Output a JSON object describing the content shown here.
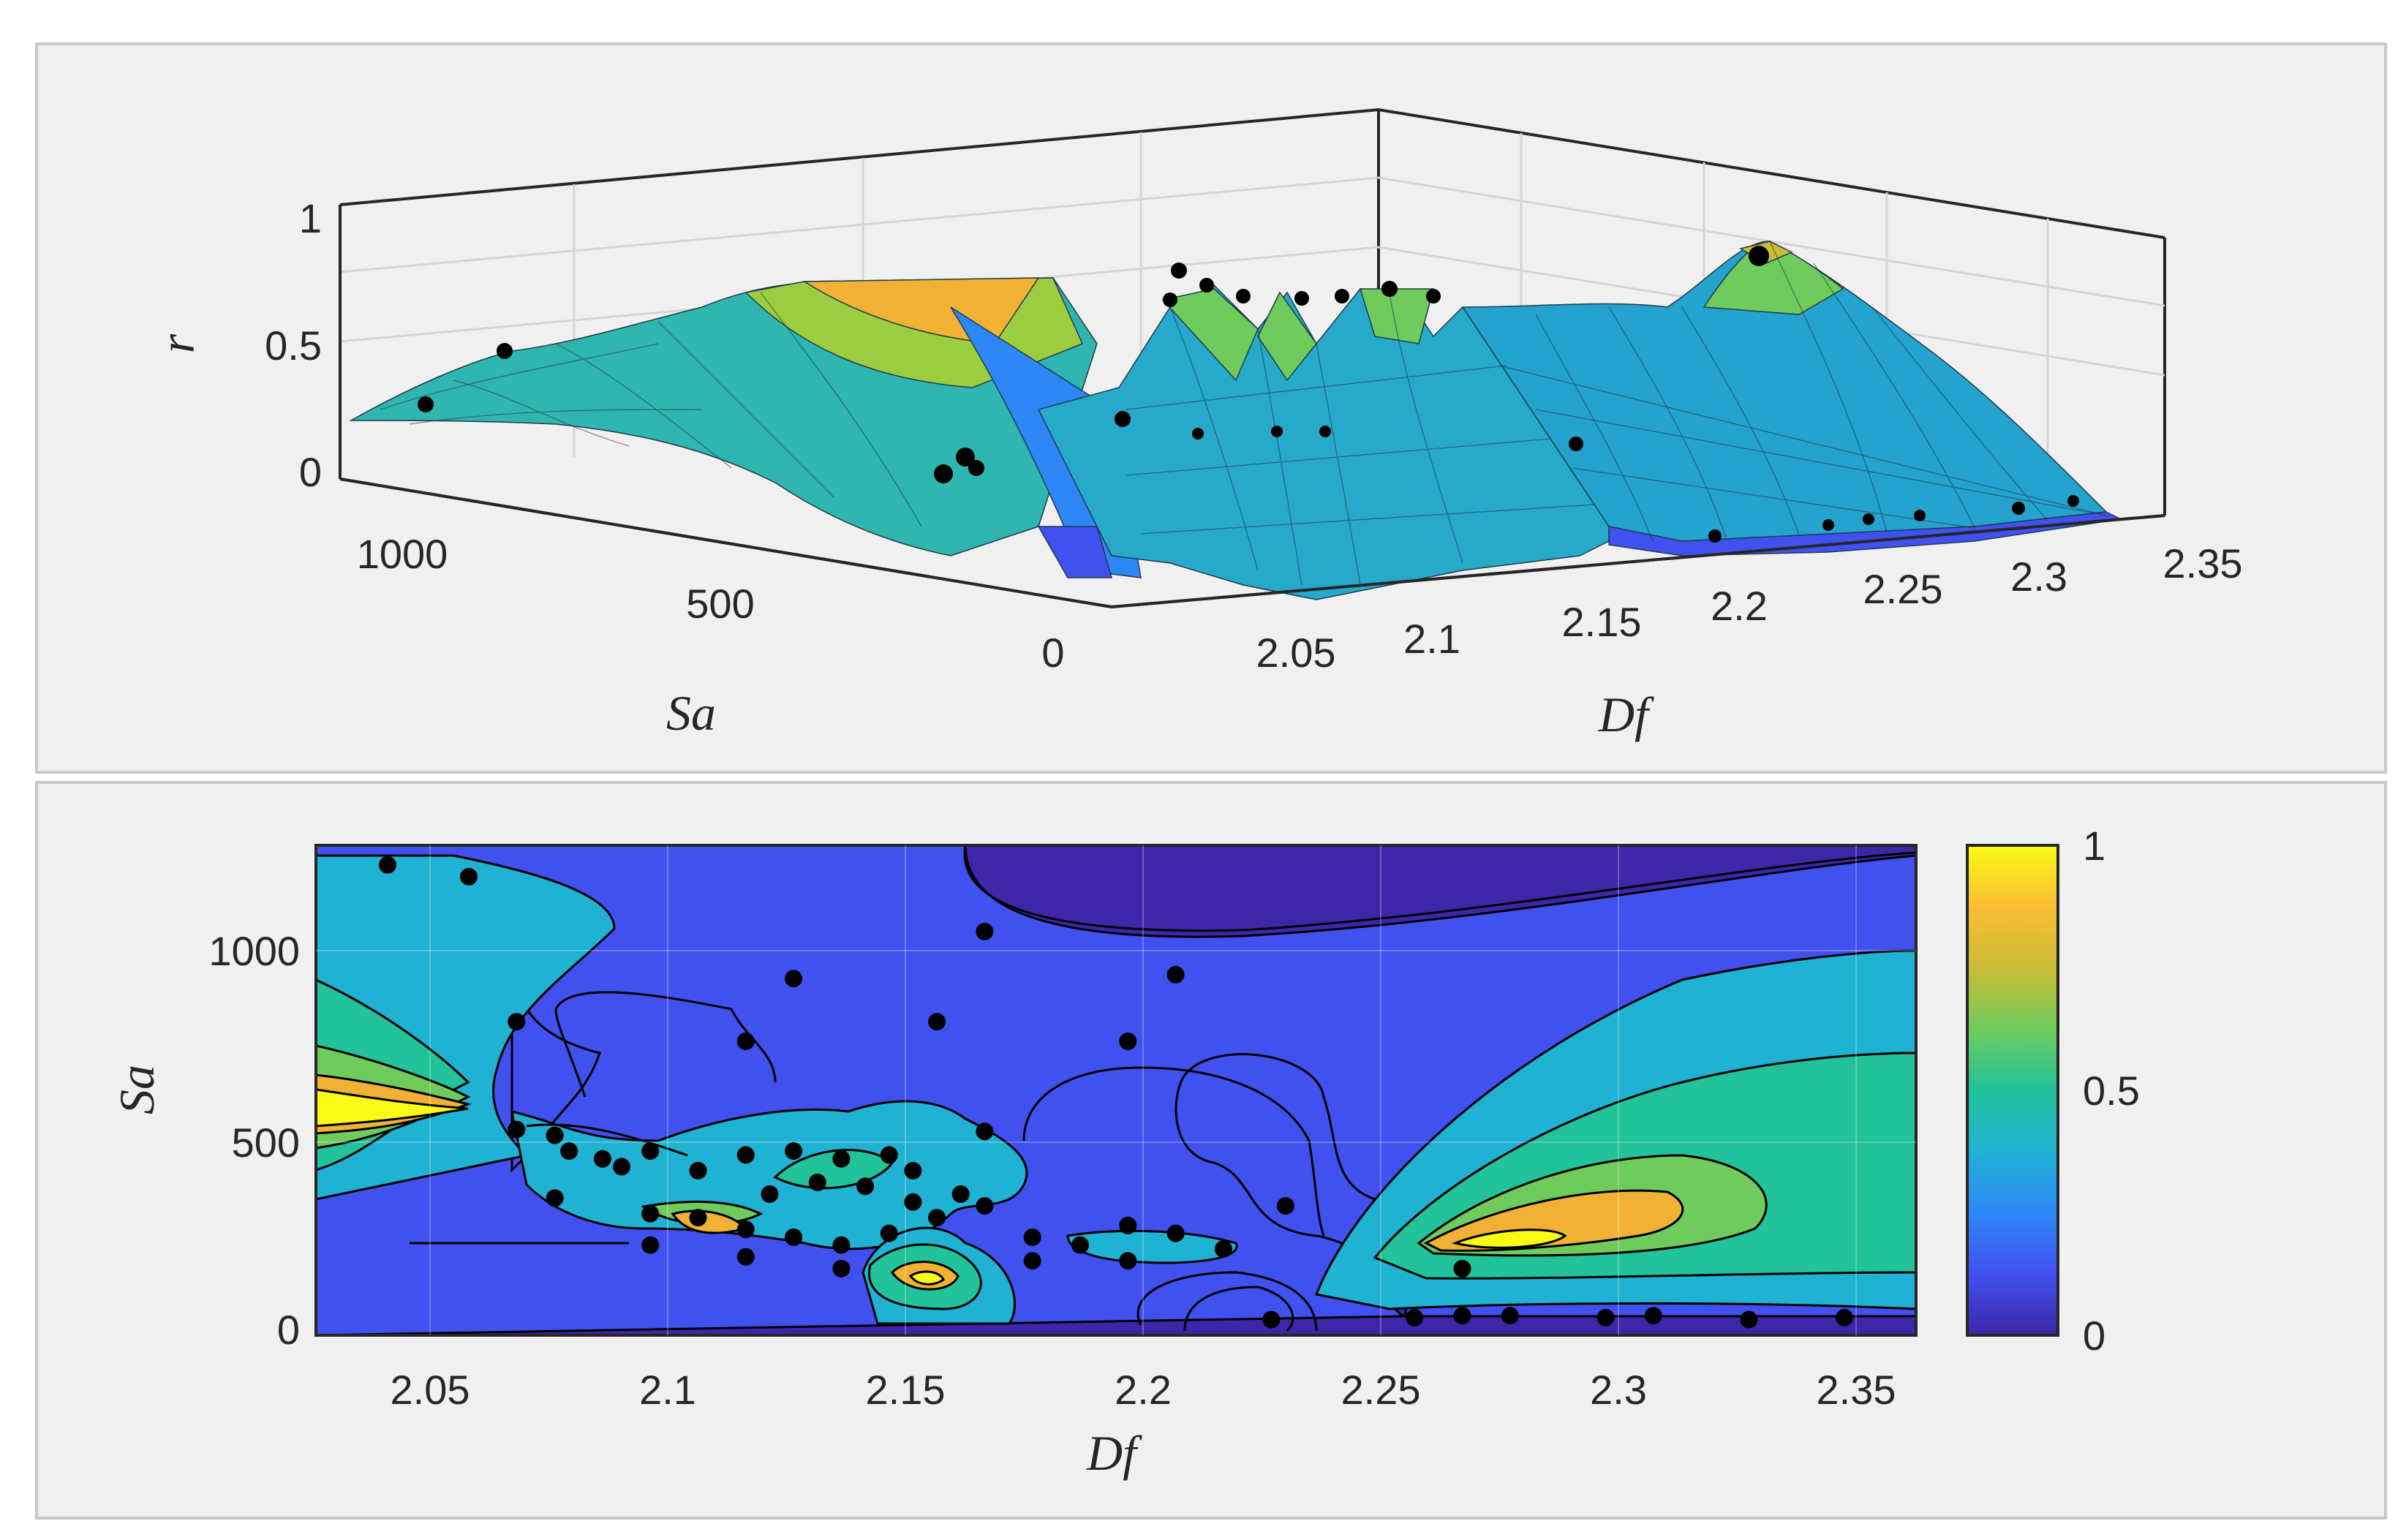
{
  "colors": {
    "panel_bg": "#f0f0f0",
    "panel_border": "#c8c8c8",
    "colormap": [
      "#3e26a8",
      "#4151f0",
      "#2e87f7",
      "#1fb2d2",
      "#22c29a",
      "#6fcb5c",
      "#c9bc37",
      "#fbbd32",
      "#f9fb15"
    ],
    "markers": "#000000"
  },
  "chart_data": [
    {
      "type": "surface",
      "x_axis_label": "Df",
      "y_axis_label": "Sa",
      "z_axis_label": "r",
      "x_ticks": [
        "2.05",
        "2.1",
        "2.15",
        "2.2",
        "2.25",
        "2.3",
        "2.35"
      ],
      "y_ticks": [
        "1000",
        "500",
        "0"
      ],
      "z_ticks": [
        "1",
        "0.5",
        "0"
      ],
      "xlim": [
        2.03,
        2.36
      ],
      "ylim": [
        0,
        1250
      ],
      "zlim": [
        0,
        1
      ],
      "grid": true,
      "observed_points": [
        {
          "Df": 2.045,
          "Sa": 1200,
          "r": 0.28
        },
        {
          "Df": 2.065,
          "Sa": 1170,
          "r": 0.45
        },
        {
          "Df": 2.15,
          "Sa": 600,
          "r": 0.68
        },
        {
          "Df": 2.16,
          "Sa": 800,
          "r": 0.75
        },
        {
          "Df": 2.17,
          "Sa": 1030,
          "r": 0.72
        },
        {
          "Df": 2.2,
          "Sa": 330,
          "r": 0.7
        },
        {
          "Df": 2.21,
          "Sa": 920,
          "r": 0.7
        },
        {
          "Df": 2.28,
          "Sa": 170,
          "r": 0.93
        },
        {
          "Df": 2.3,
          "Sa": 50,
          "r": 0.05
        },
        {
          "Df": 2.35,
          "Sa": 50,
          "r": 0.04
        }
      ]
    },
    {
      "type": "contour",
      "x_axis_label": "Df",
      "y_axis_label": "Sa",
      "x_ticks": [
        "2.05",
        "2.1",
        "2.15",
        "2.2",
        "2.25",
        "2.3",
        "2.35"
      ],
      "y_ticks": [
        "1000",
        "500",
        "0"
      ],
      "colorbar_ticks": [
        "1",
        "0.5",
        "0"
      ],
      "xlim": [
        2.03,
        2.365
      ],
      "ylim": [
        0,
        1250
      ],
      "clim": [
        0,
        1
      ],
      "levels": 9,
      "points": [
        {
          "Df": 2.045,
          "Sa": 1200
        },
        {
          "Df": 2.062,
          "Sa": 1170
        },
        {
          "Df": 2.072,
          "Sa": 800
        },
        {
          "Df": 2.072,
          "Sa": 525
        },
        {
          "Df": 2.08,
          "Sa": 510
        },
        {
          "Df": 2.083,
          "Sa": 470
        },
        {
          "Df": 2.09,
          "Sa": 450
        },
        {
          "Df": 2.094,
          "Sa": 430
        },
        {
          "Df": 2.1,
          "Sa": 470
        },
        {
          "Df": 2.11,
          "Sa": 420
        },
        {
          "Df": 2.12,
          "Sa": 460
        },
        {
          "Df": 2.12,
          "Sa": 750
        },
        {
          "Df": 2.13,
          "Sa": 910
        },
        {
          "Df": 2.13,
          "Sa": 470
        },
        {
          "Df": 2.14,
          "Sa": 450
        },
        {
          "Df": 2.15,
          "Sa": 460
        },
        {
          "Df": 2.16,
          "Sa": 800
        },
        {
          "Df": 2.17,
          "Sa": 1030
        },
        {
          "Df": 2.17,
          "Sa": 520
        },
        {
          "Df": 2.2,
          "Sa": 750
        },
        {
          "Df": 2.21,
          "Sa": 920
        },
        {
          "Df": 2.233,
          "Sa": 330
        },
        {
          "Df": 2.22,
          "Sa": 220
        },
        {
          "Df": 2.23,
          "Sa": 40
        },
        {
          "Df": 2.26,
          "Sa": 45
        },
        {
          "Df": 2.27,
          "Sa": 170
        },
        {
          "Df": 2.27,
          "Sa": 50
        },
        {
          "Df": 2.28,
          "Sa": 50
        },
        {
          "Df": 2.3,
          "Sa": 45
        },
        {
          "Df": 2.31,
          "Sa": 50
        },
        {
          "Df": 2.33,
          "Sa": 40
        },
        {
          "Df": 2.35,
          "Sa": 45
        },
        {
          "Df": 2.08,
          "Sa": 350
        },
        {
          "Df": 2.1,
          "Sa": 310
        },
        {
          "Df": 2.11,
          "Sa": 300
        },
        {
          "Df": 2.12,
          "Sa": 270
        },
        {
          "Df": 2.13,
          "Sa": 250
        },
        {
          "Df": 2.14,
          "Sa": 230
        },
        {
          "Df": 2.15,
          "Sa": 260
        },
        {
          "Df": 2.16,
          "Sa": 300
        },
        {
          "Df": 2.17,
          "Sa": 330
        },
        {
          "Df": 2.18,
          "Sa": 250
        },
        {
          "Df": 2.19,
          "Sa": 230
        },
        {
          "Df": 2.2,
          "Sa": 280
        },
        {
          "Df": 2.21,
          "Sa": 260
        },
        {
          "Df": 2.2,
          "Sa": 190
        },
        {
          "Df": 2.18,
          "Sa": 190
        },
        {
          "Df": 2.14,
          "Sa": 170
        },
        {
          "Df": 2.1,
          "Sa": 230
        },
        {
          "Df": 2.12,
          "Sa": 200
        },
        {
          "Df": 2.125,
          "Sa": 360
        },
        {
          "Df": 2.135,
          "Sa": 390
        },
        {
          "Df": 2.155,
          "Sa": 420
        },
        {
          "Df": 2.165,
          "Sa": 360
        },
        {
          "Df": 2.155,
          "Sa": 340
        },
        {
          "Df": 2.145,
          "Sa": 380
        }
      ]
    }
  ]
}
